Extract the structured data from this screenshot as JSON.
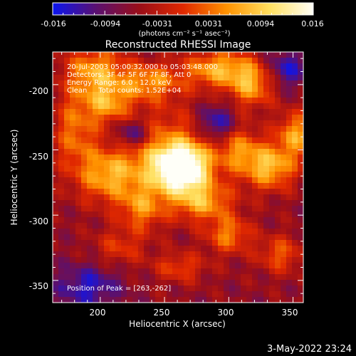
{
  "colorbar": {
    "ticks": [
      "-0.016",
      "-0.0094",
      "-0.0031",
      "0.0031",
      "0.0094",
      "0.016"
    ],
    "units": "(photons cm⁻² s⁻¹ asec⁻²)",
    "range": [
      -0.016,
      0.016
    ],
    "colormap": [
      "#0b15f0",
      "#5a1070",
      "#9a0e18",
      "#e02800",
      "#ff9200",
      "#ffe060",
      "#fffff8"
    ]
  },
  "chart_data": {
    "type": "heatmap",
    "title": "Reconstructed RHESSI Image",
    "xlabel": "Heliocentric X (arcsec)",
    "ylabel": "Heliocentric Y (arcsec)",
    "xlim": [
      163,
      358
    ],
    "ylim": [
      -367,
      -175
    ],
    "xticks": [
      200,
      250,
      300,
      350
    ],
    "yticks": [
      -200,
      -250,
      -300,
      -350
    ],
    "annotations": [
      "20-Jul-2003 05:00:32.000 to 05:03:48.000",
      "Detectors: 3F 4F 5F 6F 7F 8F, Att 0",
      "Energy Range: 6.0 - 12.0 keV",
      "Clean     Total counts: 1.52E+04"
    ],
    "peak_label": "Position of Peak = [263,-262]",
    "peak": [
      263,
      -262
    ],
    "background_level": -0.006,
    "features": [
      {
        "x": 263,
        "y": -264,
        "sx": 14,
        "sy": 12,
        "amp": 0.024
      },
      {
        "x": 250,
        "y": -255,
        "sx": 28,
        "sy": 24,
        "amp": 0.011
      },
      {
        "x": 196,
        "y": -190,
        "sx": 16,
        "sy": 14,
        "amp": 0.012
      },
      {
        "x": 206,
        "y": -215,
        "sx": 12,
        "sy": 10,
        "amp": 0.01
      },
      {
        "x": 238,
        "y": -198,
        "sx": 18,
        "sy": 10,
        "amp": 0.011
      },
      {
        "x": 292,
        "y": -188,
        "sx": 18,
        "sy": 10,
        "amp": 0.013
      },
      {
        "x": 318,
        "y": -200,
        "sx": 12,
        "sy": 12,
        "amp": 0.012
      },
      {
        "x": 180,
        "y": -235,
        "sx": 12,
        "sy": 22,
        "amp": 0.009
      },
      {
        "x": 205,
        "y": -270,
        "sx": 16,
        "sy": 14,
        "amp": 0.011
      },
      {
        "x": 232,
        "y": -295,
        "sx": 12,
        "sy": 12,
        "amp": 0.009
      },
      {
        "x": 280,
        "y": -290,
        "sx": 16,
        "sy": 10,
        "amp": 0.011
      },
      {
        "x": 300,
        "y": -315,
        "sx": 12,
        "sy": 10,
        "amp": 0.01
      },
      {
        "x": 332,
        "y": -263,
        "sx": 14,
        "sy": 12,
        "amp": 0.014
      },
      {
        "x": 352,
        "y": -238,
        "sx": 10,
        "sy": 12,
        "amp": 0.012
      },
      {
        "x": 308,
        "y": -250,
        "sx": 12,
        "sy": 12,
        "amp": 0.009
      },
      {
        "x": 340,
        "y": -330,
        "sx": 12,
        "sy": 10,
        "amp": 0.008
      },
      {
        "x": 262,
        "y": -340,
        "sx": 14,
        "sy": 8,
        "amp": 0.007
      },
      {
        "x": 215,
        "y": -325,
        "sx": 14,
        "sy": 10,
        "amp": 0.006
      },
      {
        "x": 225,
        "y": -238,
        "sx": 10,
        "sy": 8,
        "amp": -0.01
      },
      {
        "x": 290,
        "y": -230,
        "sx": 10,
        "sy": 10,
        "amp": -0.01
      },
      {
        "x": 190,
        "y": -355,
        "sx": 18,
        "sy": 12,
        "amp": -0.008
      },
      {
        "x": 345,
        "y": -188,
        "sx": 12,
        "sy": 10,
        "amp": -0.008
      }
    ]
  },
  "footer": {
    "date": "3-May-2022 23:24"
  }
}
